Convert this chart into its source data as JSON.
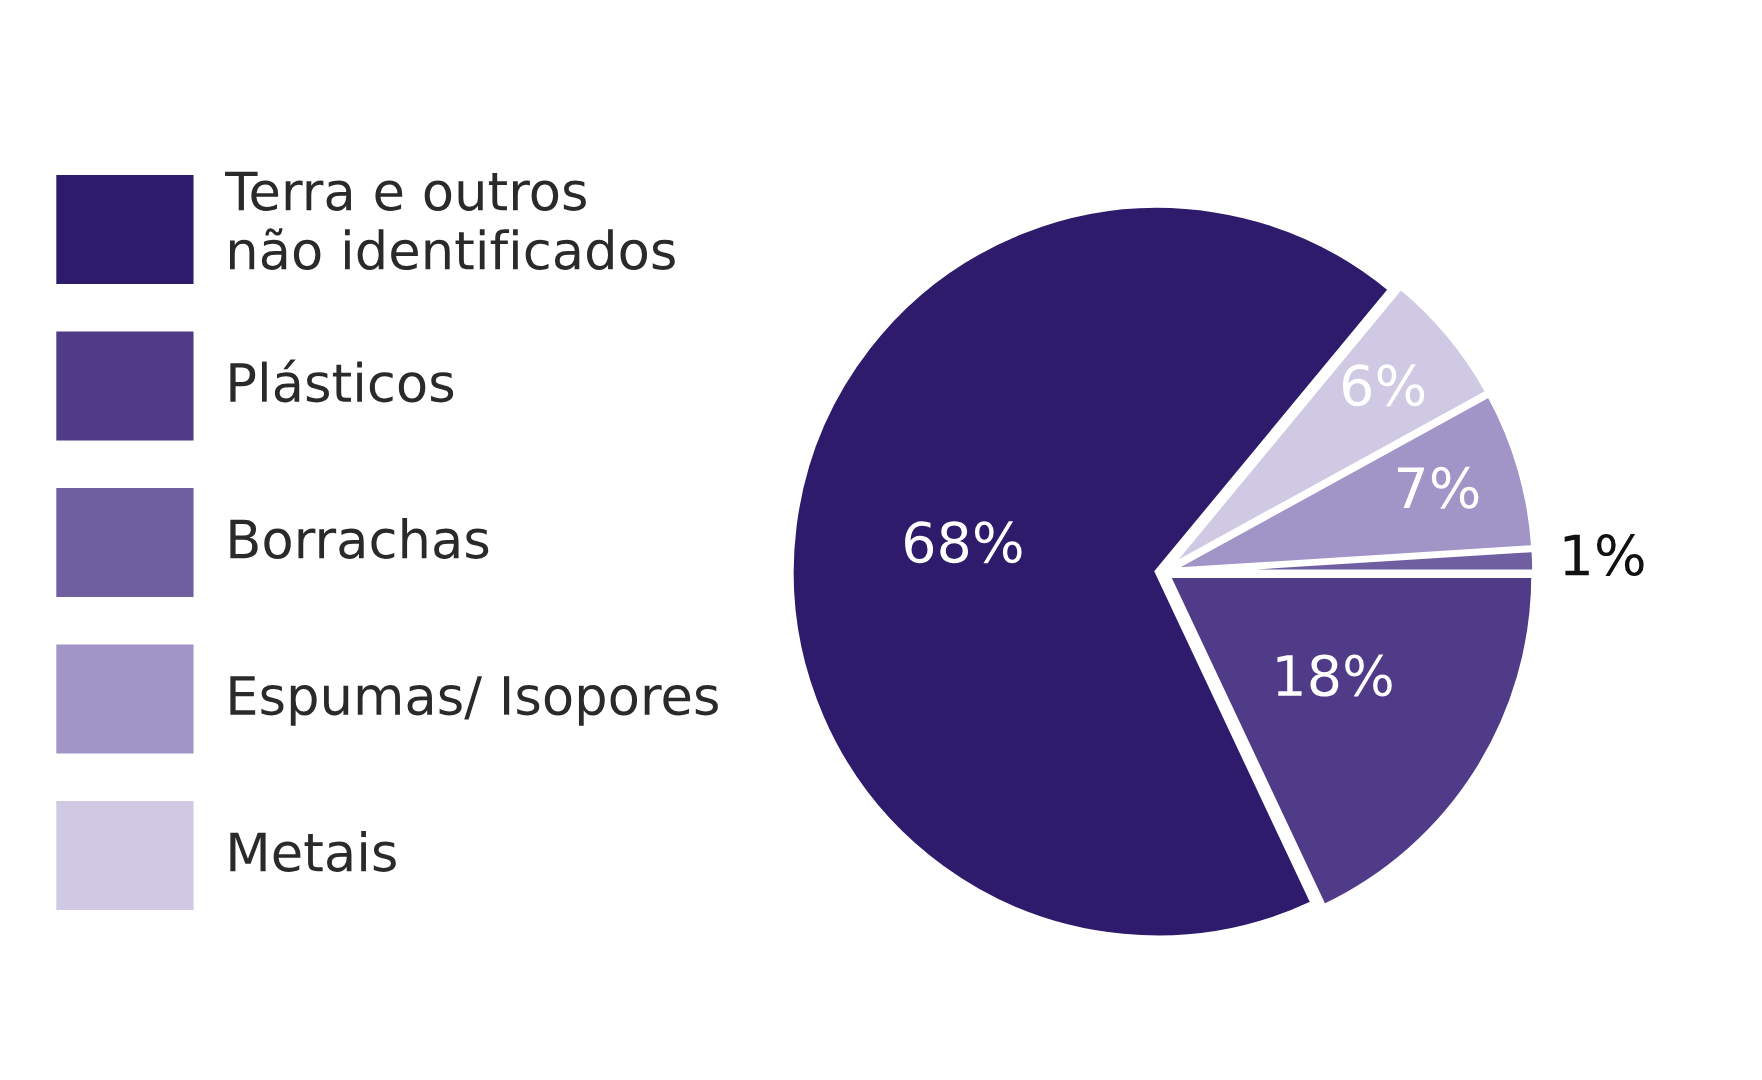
{
  "chart_data": {
    "type": "pie",
    "categories": [
      "Terra e outros não identificados",
      "Plásticos",
      "Borrachas",
      "Espumas/ Isopores",
      "Metais"
    ],
    "values": [
      68,
      18,
      1,
      7,
      6
    ],
    "colors": [
      "#2e1b6c",
      "#4f3b87",
      "#6f5ea0",
      "#a194c6",
      "#d0c9e3"
    ],
    "value_labels": [
      "68%",
      "18%",
      "1%",
      "7%",
      "6%"
    ],
    "legend": "left"
  }
}
